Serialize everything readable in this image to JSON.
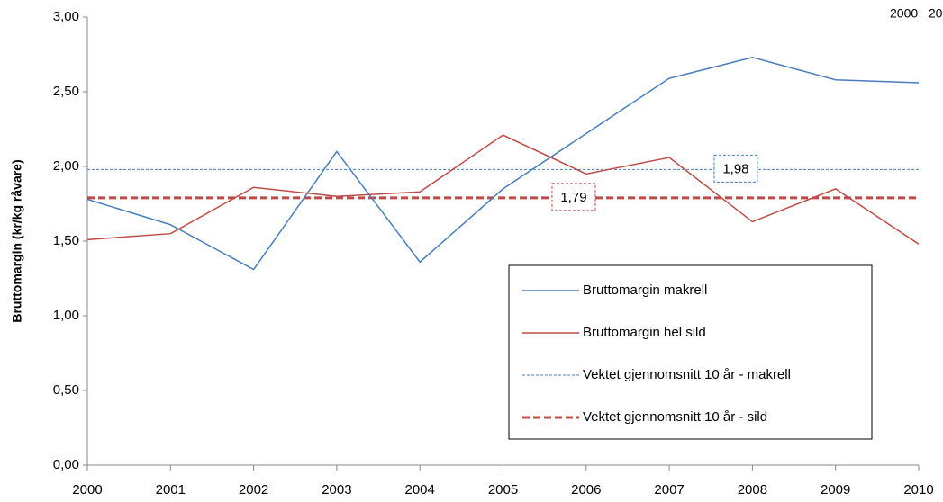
{
  "chart_data": {
    "type": "line",
    "ylabel": "Bruttomargin (kr/kg råvare)",
    "annotation": "2000   20",
    "x": [
      2000,
      2001,
      2002,
      2003,
      2004,
      2005,
      2006,
      2007,
      2008,
      2009,
      2010
    ],
    "xlim": [
      2000,
      2010
    ],
    "xticks": [
      2000,
      2001,
      2002,
      2003,
      2004,
      2005,
      2006,
      2007,
      2008,
      2009,
      2010
    ],
    "ylim": [
      0,
      3
    ],
    "yticks": [
      {
        "value": 0,
        "label": "0,00"
      },
      {
        "value": 0.5,
        "label": "0,50"
      },
      {
        "value": 1,
        "label": "1,00"
      },
      {
        "value": 1.5,
        "label": "1,50"
      },
      {
        "value": 2,
        "label": "2,00"
      },
      {
        "value": 2.5,
        "label": "2,50"
      },
      {
        "value": 3,
        "label": "3,00"
      }
    ],
    "series": [
      {
        "name": "Bruttomargin makrell",
        "color": "#4a7ebb",
        "style": "solid",
        "values": [
          1.78,
          1.61,
          1.31,
          2.1,
          1.36,
          1.85,
          2.22,
          2.59,
          2.73,
          2.58,
          2.56
        ]
      },
      {
        "name": "Bruttomargin hel sild",
        "color": "#be4b48",
        "style": "solid",
        "values": [
          1.51,
          1.55,
          1.86,
          1.8,
          1.83,
          2.21,
          1.95,
          2.06,
          1.63,
          1.85,
          1.48
        ]
      }
    ],
    "averages": [
      {
        "name": "Vektet gjennomsnitt  10 år  - makrell",
        "color": "#4a7ebb",
        "style": "dotted",
        "value": 1.98,
        "value_label": "1,98"
      },
      {
        "name": "Vektet gjennomsnitt  10 år  - sild",
        "color": "#be4b48",
        "style": "dashed",
        "value": 1.79,
        "value_label": "1,79"
      }
    ],
    "legend": "lower right"
  }
}
